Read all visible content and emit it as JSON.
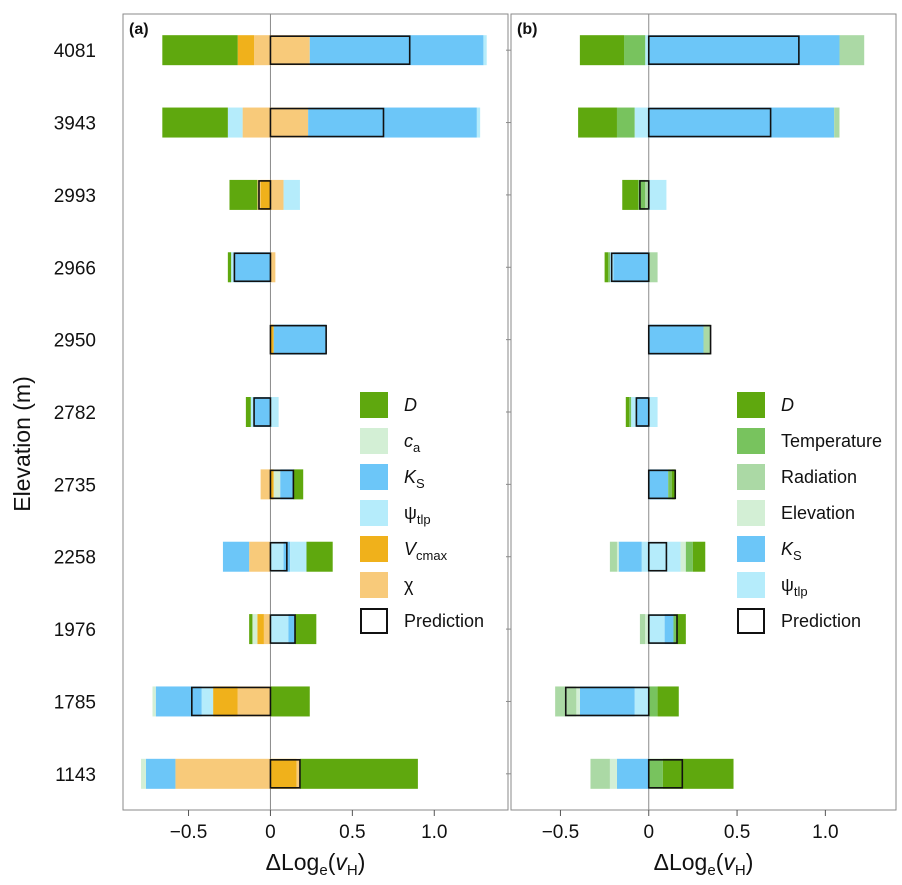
{
  "colors": {
    "D": "#5fa80e",
    "ca": "#d3efd5",
    "Ks": "#6cc6f8",
    "psi": "#b5ecfb",
    "Vcmax": "#f0b11b",
    "chi": "#f8ca7a",
    "Temperature": "#78c35e",
    "Radiation": "#abd9a5",
    "Elevation": "#d3efd5"
  },
  "chart_data": {
    "type": "bar",
    "ylabel": "Elevation (m)",
    "categories": [
      "4081",
      "3943",
      "2993",
      "2966",
      "2950",
      "2782",
      "2735",
      "2258",
      "1976",
      "1785",
      "1143"
    ],
    "panels": [
      {
        "tag": "(a)",
        "xlabel_main": "ΔLog",
        "xlabel_sub": "e",
        "xlabel_open": "(",
        "xlabel_var": "v",
        "xlabel_varsub": "H",
        "xlabel_close": ")",
        "xlim": [
          -0.9,
          1.45
        ],
        "xticks": [
          {
            "v": -0.5,
            "label": "−0.5"
          },
          {
            "v": 0,
            "label": "0"
          },
          {
            "v": 0.5,
            "label": "0.5"
          },
          {
            "v": 1,
            "label": "1.0"
          }
        ],
        "legend": [
          {
            "key": "D",
            "label": "D",
            "italic": true,
            "sub": ""
          },
          {
            "key": "ca",
            "label": "c",
            "italic": true,
            "sub": "a"
          },
          {
            "key": "Ks",
            "label": "K",
            "italic": true,
            "sub": "S"
          },
          {
            "key": "psi",
            "label": "ψ",
            "italic": false,
            "sub": "tlp"
          },
          {
            "key": "Vcmax",
            "label": "V",
            "italic": true,
            "sub": "cmax"
          },
          {
            "key": "chi",
            "label": "χ",
            "italic": false,
            "sub": ""
          },
          {
            "key": "prediction",
            "label": "Prediction",
            "italic": false,
            "sub": ""
          }
        ],
        "rows": [
          {
            "neg": [
              [
                "chi",
                0.1
              ],
              [
                "Vcmax",
                0.1
              ],
              [
                "D",
                0.46
              ]
            ],
            "pos": [
              [
                "chi",
                0.24
              ],
              [
                "Ks",
                1.06
              ],
              [
                "psi",
                0.02
              ]
            ],
            "pred": 0.85
          },
          {
            "neg": [
              [
                "chi",
                0.17
              ],
              [
                "psi",
                0.09
              ],
              [
                "D",
                0.4
              ]
            ],
            "pos": [
              [
                "chi",
                0.23
              ],
              [
                "Ks",
                1.03
              ],
              [
                "psi",
                0.02
              ]
            ],
            "pred": 0.69
          },
          {
            "neg": [
              [
                "Vcmax",
                0.06
              ],
              [
                "chi",
                0.02
              ],
              [
                "D",
                0.17
              ]
            ],
            "pos": [
              [
                "chi",
                0.08
              ],
              [
                "psi",
                0.1
              ]
            ],
            "pred": -0.07
          },
          {
            "neg": [
              [
                "Ks",
                0.22
              ],
              [
                "psi",
                0.02
              ],
              [
                "D",
                0.02
              ]
            ],
            "pos": [
              [
                "chi",
                0.03
              ]
            ],
            "pred": -0.22
          },
          {
            "neg": [],
            "pos": [
              [
                "Vcmax",
                0.02
              ],
              [
                "Ks",
                0.32
              ]
            ],
            "pred": 0.34
          },
          {
            "neg": [
              [
                "Ks",
                0.1
              ],
              [
                "psi",
                0.02
              ],
              [
                "D",
                0.03
              ]
            ],
            "pos": [
              [
                "psi",
                0.05
              ]
            ],
            "pred": -0.1
          },
          {
            "neg": [
              [
                "chi",
                0.06
              ]
            ],
            "pos": [
              [
                "Vcmax",
                0.02
              ],
              [
                "ca",
                0.04
              ],
              [
                "Ks",
                0.08
              ],
              [
                "D",
                0.06
              ]
            ],
            "pred": 0.14
          },
          {
            "neg": [
              [
                "chi",
                0.13
              ],
              [
                "Ks",
                0.16
              ]
            ],
            "pos": [
              [
                "psi",
                0.08
              ],
              [
                "Ks",
                0.04
              ],
              [
                "psi",
                0.1
              ],
              [
                "D",
                0.16
              ]
            ],
            "pred": 0.1
          },
          {
            "neg": [
              [
                "chi",
                0.04
              ],
              [
                "Vcmax",
                0.04
              ],
              [
                "ca",
                0.03
              ],
              [
                "D",
                0.02
              ]
            ],
            "pos": [
              [
                "psi",
                0.11
              ],
              [
                "Ks",
                0.04
              ],
              [
                "D",
                0.13
              ]
            ],
            "pred": 0.15
          },
          {
            "neg": [
              [
                "chi",
                0.2
              ],
              [
                "Vcmax",
                0.15
              ],
              [
                "psi",
                0.07
              ],
              [
                "Ks",
                0.28
              ],
              [
                "ca",
                0.02
              ]
            ],
            "pos": [
              [
                "D",
                0.24
              ]
            ],
            "pred": -0.48
          },
          {
            "neg": [
              [
                "chi",
                0.58
              ],
              [
                "Ks",
                0.18
              ],
              [
                "ca",
                0.03
              ]
            ],
            "pos": [
              [
                "Vcmax",
                0.16
              ],
              [
                "chi",
                0.02
              ],
              [
                "D",
                0.72
              ]
            ],
            "pred": 0.18
          }
        ]
      },
      {
        "tag": "(b)",
        "xlabel_main": "ΔLog",
        "xlabel_sub": "e",
        "xlabel_open": "(",
        "xlabel_var": "v",
        "xlabel_varsub": "H",
        "xlabel_close": ")",
        "xlim": [
          -0.78,
          1.4
        ],
        "xticks": [
          {
            "v": -0.5,
            "label": "−0.5"
          },
          {
            "v": 0,
            "label": "0"
          },
          {
            "v": 0.5,
            "label": "0.5"
          },
          {
            "v": 1,
            "label": "1.0"
          }
        ],
        "legend": [
          {
            "key": "D",
            "label": "D",
            "italic": true,
            "sub": ""
          },
          {
            "key": "Temperature",
            "label": "Temperature",
            "italic": false,
            "sub": ""
          },
          {
            "key": "Radiation",
            "label": "Radiation",
            "italic": false,
            "sub": ""
          },
          {
            "key": "Elevation",
            "label": "Elevation",
            "italic": false,
            "sub": ""
          },
          {
            "key": "Ks",
            "label": "K",
            "italic": true,
            "sub": "S"
          },
          {
            "key": "psi",
            "label": "ψ",
            "italic": false,
            "sub": "tlp"
          },
          {
            "key": "prediction",
            "label": "Prediction",
            "italic": false,
            "sub": ""
          }
        ],
        "rows": [
          {
            "neg": [
              [
                "psi",
                0.02
              ],
              [
                "Temperature",
                0.12
              ],
              [
                "D",
                0.25
              ]
            ],
            "pos": [
              [
                "Ks",
                1.08
              ],
              [
                "Radiation",
                0.14
              ]
            ],
            "pred": 0.85
          },
          {
            "neg": [
              [
                "psi",
                0.08
              ],
              [
                "Temperature",
                0.1
              ],
              [
                "D",
                0.22
              ]
            ],
            "pos": [
              [
                "Ks",
                1.05
              ],
              [
                "Radiation",
                0.03
              ]
            ],
            "pred": 0.69
          },
          {
            "neg": [
              [
                "Radiation",
                0.02
              ],
              [
                "Temperature",
                0.04
              ],
              [
                "D",
                0.09
              ]
            ],
            "pos": [
              [
                "psi",
                0.1
              ]
            ],
            "pred": -0.05
          },
          {
            "neg": [
              [
                "Ks",
                0.2
              ],
              [
                "psi",
                0.02
              ],
              [
                "Temperature",
                0.01
              ],
              [
                "D",
                0.02
              ]
            ],
            "pos": [
              [
                "Radiation",
                0.05
              ]
            ],
            "pred": -0.21
          },
          {
            "neg": [],
            "pos": [
              [
                "Ks",
                0.31
              ],
              [
                "Radiation",
                0.04
              ]
            ],
            "pred": 0.35
          },
          {
            "neg": [
              [
                "Ks",
                0.07
              ],
              [
                "psi",
                0.03
              ],
              [
                "Temperature",
                0.01
              ],
              [
                "D",
                0.02
              ]
            ],
            "pos": [
              [
                "psi",
                0.05
              ]
            ],
            "pred": -0.07
          },
          {
            "neg": [],
            "pos": [
              [
                "Ks",
                0.11
              ],
              [
                "Temperature",
                0.02
              ],
              [
                "D",
                0.02
              ]
            ],
            "pred": 0.15
          },
          {
            "neg": [
              [
                "psi",
                0.04
              ],
              [
                "Ks",
                0.13
              ],
              [
                "Elevation",
                0.01
              ],
              [
                "Radiation",
                0.04
              ]
            ],
            "pos": [
              [
                "psi",
                0.18
              ],
              [
                "Elevation",
                0.03
              ],
              [
                "Temperature",
                0.04
              ],
              [
                "D",
                0.07
              ]
            ],
            "pred": 0.1
          },
          {
            "neg": [
              [
                "Elevation",
                0.02
              ],
              [
                "Radiation",
                0.03
              ]
            ],
            "pos": [
              [
                "psi",
                0.09
              ],
              [
                "Ks",
                0.05
              ],
              [
                "Temperature",
                0.02
              ],
              [
                "D",
                0.05
              ]
            ],
            "pred": 0.16
          },
          {
            "neg": [
              [
                "psi",
                0.08
              ],
              [
                "Ks",
                0.31
              ],
              [
                "Elevation",
                0.02
              ],
              [
                "Radiation",
                0.12
              ]
            ],
            "pos": [
              [
                "Temperature",
                0.05
              ],
              [
                "D",
                0.12
              ]
            ],
            "pred": -0.47
          },
          {
            "neg": [
              [
                "Ks",
                0.18
              ],
              [
                "Elevation",
                0.04
              ],
              [
                "Radiation",
                0.11
              ]
            ],
            "pos": [
              [
                "Temperature",
                0.08
              ],
              [
                "D",
                0.4
              ]
            ],
            "pred": 0.19
          }
        ]
      }
    ]
  }
}
